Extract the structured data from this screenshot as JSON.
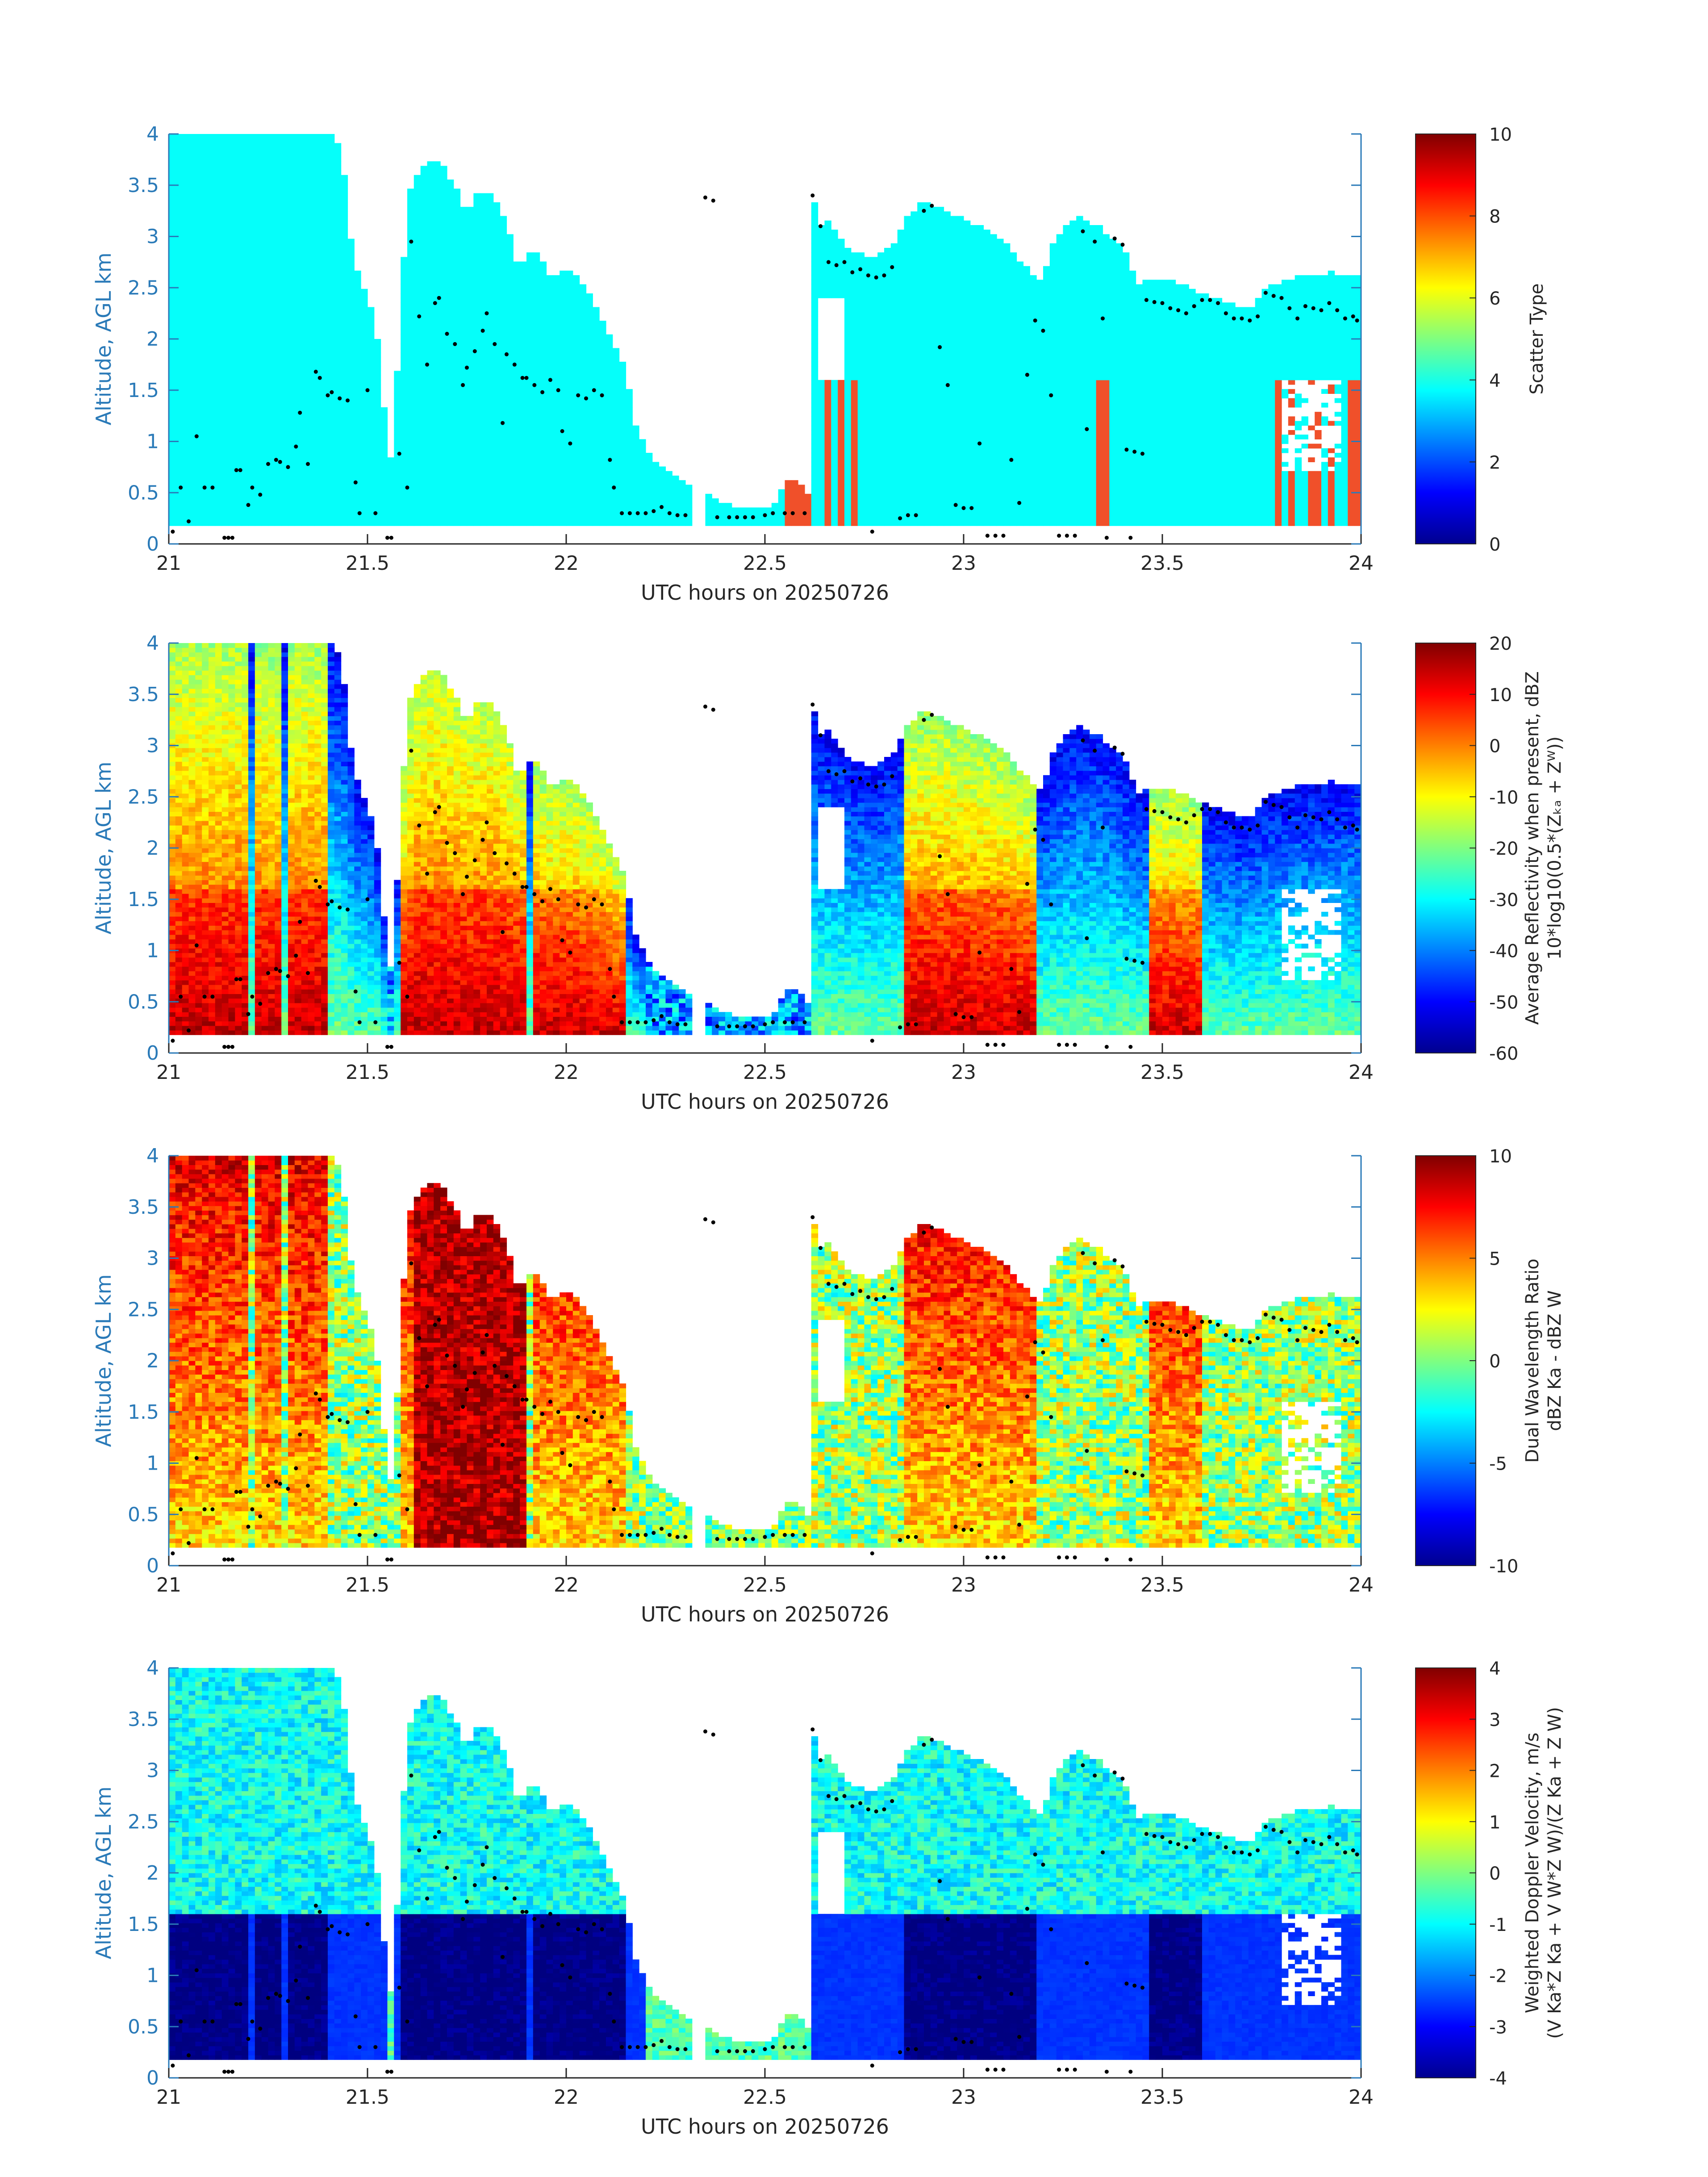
{
  "figure": {
    "panels_count": 4
  },
  "chart_data": [
    {
      "type": "heatmap",
      "xlabel": "UTC hours on 20250726",
      "ylabel": "Altitude, AGL km",
      "xlim": [
        21,
        24
      ],
      "ylim": [
        0,
        4
      ],
      "xticks": [
        "21",
        "21.5",
        "22",
        "22.5",
        "23",
        "23.5",
        "24"
      ],
      "yticks": [
        "0",
        "0.5",
        "1",
        "1.5",
        "2",
        "2.5",
        "3",
        "3.5",
        "4"
      ],
      "colorbar": {
        "label_lines": [
          "Scatter Type"
        ],
        "range": [
          0,
          10
        ],
        "ticks": [
          "0",
          "2",
          "4",
          "6",
          "8",
          "10"
        ],
        "colormap": "jet"
      },
      "cloud_value": 3.8,
      "precip_value": 8.5,
      "background_color": "#ffffff"
    },
    {
      "type": "heatmap",
      "xlabel": "UTC hours on 20250726",
      "ylabel": "Altitude, AGL km",
      "xlim": [
        21,
        24
      ],
      "ylim": [
        0,
        4
      ],
      "xticks": [
        "21",
        "21.5",
        "22",
        "22.5",
        "23",
        "23.5",
        "24"
      ],
      "yticks": [
        "0",
        "0.5",
        "1",
        "1.5",
        "2",
        "2.5",
        "3",
        "3.5",
        "4"
      ],
      "colorbar": {
        "label_lines": [
          "Average Reflectivity when present, dBZ",
          "10*log10(0.5*(Zₖₐ + Zᵂ))"
        ],
        "range": [
          -60,
          20
        ],
        "ticks": [
          "-60",
          "-50",
          "-40",
          "-30",
          "-20",
          "-10",
          "0",
          "10",
          "20"
        ],
        "colormap": "jet"
      }
    },
    {
      "type": "heatmap",
      "xlabel": "UTC hours on 20250726",
      "ylabel": "Altitude, AGL km",
      "xlim": [
        21,
        24
      ],
      "ylim": [
        0,
        4
      ],
      "xticks": [
        "21",
        "21.5",
        "22",
        "22.5",
        "23",
        "23.5",
        "24"
      ],
      "yticks": [
        "0",
        "0.5",
        "1",
        "1.5",
        "2",
        "2.5",
        "3",
        "3.5",
        "4"
      ],
      "colorbar": {
        "label_lines": [
          "Dual Wavelength Ratio",
          "dBZ Ka - dBZ W"
        ],
        "range": [
          -10,
          10
        ],
        "ticks": [
          "-10",
          "-5",
          "0",
          "5",
          "10"
        ],
        "colormap": "jet"
      }
    },
    {
      "type": "heatmap",
      "xlabel": "UTC hours on 20250726",
      "ylabel": "Altitude, AGL km",
      "xlim": [
        21,
        24
      ],
      "ylim": [
        0,
        4
      ],
      "xticks": [
        "21",
        "21.5",
        "22",
        "22.5",
        "23",
        "23.5",
        "24"
      ],
      "yticks": [
        "0",
        "0.5",
        "1",
        "1.5",
        "2",
        "2.5",
        "3",
        "3.5",
        "4"
      ],
      "colorbar": {
        "label_lines": [
          "Weighted Doppler Velocity, m/s",
          "(V Ka*Z Ka + V W*Z W)/(Z Ka + Z W)"
        ],
        "range": [
          -4,
          4
        ],
        "ticks": [
          "-4",
          "-3",
          "-2",
          "-1",
          "0",
          "1",
          "2",
          "3",
          "4"
        ],
        "colormap": "jet"
      }
    }
  ],
  "cloud_base_points": [
    [
      21.01,
      0.12
    ],
    [
      21.03,
      0.55
    ],
    [
      21.05,
      0.22
    ],
    [
      21.07,
      1.05
    ],
    [
      21.09,
      0.55
    ],
    [
      21.11,
      0.55
    ],
    [
      21.14,
      0.06
    ],
    [
      21.15,
      0.06
    ],
    [
      21.16,
      0.06
    ],
    [
      21.17,
      0.72
    ],
    [
      21.18,
      0.72
    ],
    [
      21.2,
      0.38
    ],
    [
      21.21,
      0.55
    ],
    [
      21.23,
      0.48
    ],
    [
      21.25,
      0.78
    ],
    [
      21.27,
      0.82
    ],
    [
      21.28,
      0.8
    ],
    [
      21.3,
      0.75
    ],
    [
      21.32,
      0.95
    ],
    [
      21.33,
      1.28
    ],
    [
      21.35,
      0.78
    ],
    [
      21.37,
      1.68
    ],
    [
      21.38,
      1.62
    ],
    [
      21.4,
      1.45
    ],
    [
      21.41,
      1.48
    ],
    [
      21.43,
      1.42
    ],
    [
      21.45,
      1.4
    ],
    [
      21.47,
      0.6
    ],
    [
      21.48,
      0.3
    ],
    [
      21.5,
      1.5
    ],
    [
      21.52,
      0.3
    ],
    [
      21.55,
      0.06
    ],
    [
      21.56,
      0.06
    ],
    [
      21.58,
      0.88
    ],
    [
      21.6,
      0.55
    ],
    [
      21.61,
      2.95
    ],
    [
      21.63,
      2.22
    ],
    [
      21.65,
      1.75
    ],
    [
      21.67,
      2.35
    ],
    [
      21.68,
      2.4
    ],
    [
      21.7,
      2.05
    ],
    [
      21.72,
      1.95
    ],
    [
      21.74,
      1.55
    ],
    [
      21.75,
      1.72
    ],
    [
      21.77,
      1.88
    ],
    [
      21.79,
      2.08
    ],
    [
      21.8,
      2.25
    ],
    [
      21.82,
      1.95
    ],
    [
      21.84,
      1.18
    ],
    [
      21.85,
      1.85
    ],
    [
      21.87,
      1.75
    ],
    [
      21.89,
      1.62
    ],
    [
      21.9,
      1.62
    ],
    [
      21.92,
      1.55
    ],
    [
      21.94,
      1.48
    ],
    [
      21.96,
      1.6
    ],
    [
      21.98,
      1.5
    ],
    [
      21.99,
      1.1
    ],
    [
      22.01,
      0.98
    ],
    [
      22.03,
      1.45
    ],
    [
      22.05,
      1.42
    ],
    [
      22.07,
      1.5
    ],
    [
      22.09,
      1.45
    ],
    [
      22.11,
      0.82
    ],
    [
      22.12,
      0.55
    ],
    [
      22.14,
      0.3
    ],
    [
      22.16,
      0.3
    ],
    [
      22.18,
      0.3
    ],
    [
      22.2,
      0.3
    ],
    [
      22.22,
      0.32
    ],
    [
      22.24,
      0.36
    ],
    [
      22.26,
      0.3
    ],
    [
      22.28,
      0.28
    ],
    [
      22.3,
      0.28
    ],
    [
      22.35,
      3.38
    ],
    [
      22.37,
      3.35
    ],
    [
      22.38,
      0.26
    ],
    [
      22.41,
      0.26
    ],
    [
      22.43,
      0.26
    ],
    [
      22.45,
      0.26
    ],
    [
      22.47,
      0.26
    ],
    [
      22.5,
      0.28
    ],
    [
      22.52,
      0.3
    ],
    [
      22.55,
      0.3
    ],
    [
      22.57,
      0.3
    ],
    [
      22.6,
      0.3
    ],
    [
      22.62,
      3.4
    ],
    [
      22.64,
      3.1
    ],
    [
      22.66,
      2.75
    ],
    [
      22.68,
      2.72
    ],
    [
      22.7,
      2.75
    ],
    [
      22.72,
      2.65
    ],
    [
      22.74,
      2.68
    ],
    [
      22.76,
      2.62
    ],
    [
      22.77,
      0.12
    ],
    [
      22.78,
      2.6
    ],
    [
      22.8,
      2.62
    ],
    [
      22.82,
      2.7
    ],
    [
      22.84,
      0.25
    ],
    [
      22.86,
      0.28
    ],
    [
      22.88,
      0.28
    ],
    [
      22.9,
      3.25
    ],
    [
      22.92,
      3.3
    ],
    [
      22.94,
      1.92
    ],
    [
      22.96,
      1.55
    ],
    [
      22.98,
      0.38
    ],
    [
      23.0,
      0.35
    ],
    [
      23.02,
      0.35
    ],
    [
      23.04,
      0.98
    ],
    [
      23.06,
      0.08
    ],
    [
      23.08,
      0.08
    ],
    [
      23.1,
      0.08
    ],
    [
      23.12,
      0.82
    ],
    [
      23.14,
      0.4
    ],
    [
      23.16,
      1.65
    ],
    [
      23.18,
      2.18
    ],
    [
      23.2,
      2.08
    ],
    [
      23.22,
      1.45
    ],
    [
      23.24,
      0.08
    ],
    [
      23.26,
      0.08
    ],
    [
      23.28,
      0.08
    ],
    [
      23.3,
      3.05
    ],
    [
      23.31,
      1.12
    ],
    [
      23.33,
      2.95
    ],
    [
      23.35,
      2.2
    ],
    [
      23.36,
      0.06
    ],
    [
      23.38,
      2.98
    ],
    [
      23.4,
      2.92
    ],
    [
      23.41,
      0.92
    ],
    [
      23.42,
      0.06
    ],
    [
      23.43,
      0.9
    ],
    [
      23.45,
      0.88
    ],
    [
      23.46,
      2.38
    ],
    [
      23.48,
      2.36
    ],
    [
      23.5,
      2.35
    ],
    [
      23.52,
      2.3
    ],
    [
      23.54,
      2.28
    ],
    [
      23.56,
      2.25
    ],
    [
      23.58,
      2.32
    ],
    [
      23.6,
      2.38
    ],
    [
      23.62,
      2.38
    ],
    [
      23.64,
      2.35
    ],
    [
      23.66,
      2.25
    ],
    [
      23.68,
      2.2
    ],
    [
      23.7,
      2.2
    ],
    [
      23.72,
      2.18
    ],
    [
      23.74,
      2.22
    ],
    [
      23.76,
      2.45
    ],
    [
      23.78,
      2.42
    ],
    [
      23.8,
      2.4
    ],
    [
      23.82,
      2.3
    ],
    [
      23.84,
      2.2
    ],
    [
      23.86,
      2.32
    ],
    [
      23.88,
      2.3
    ],
    [
      23.9,
      2.28
    ],
    [
      23.92,
      2.35
    ],
    [
      23.94,
      2.28
    ],
    [
      23.96,
      2.2
    ],
    [
      23.98,
      2.22
    ],
    [
      23.99,
      2.18
    ]
  ]
}
